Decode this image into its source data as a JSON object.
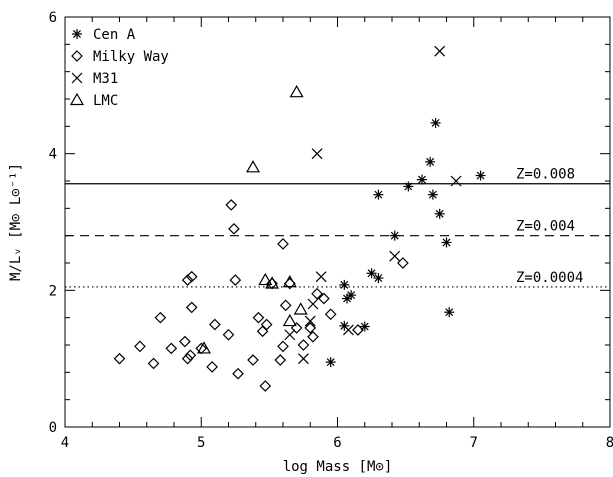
{
  "chart_data": {
    "type": "scatter",
    "xlabel": "log Mass [M⊙]",
    "ylabel": "M/Lᵥ [M⊙ L⊙⁻¹]",
    "xlim": [
      4,
      8
    ],
    "ylim": [
      0,
      6
    ],
    "x_ticks": [
      4,
      5,
      6,
      7,
      8
    ],
    "x_tick_labels": [
      "4",
      "5",
      "6",
      "7",
      "8"
    ],
    "y_ticks": [
      0,
      2,
      4,
      6
    ],
    "y_tick_labels": [
      "0",
      "2",
      "4",
      "6"
    ],
    "grid": false,
    "legend_position": "top-left",
    "series": [
      {
        "name": "Cen A",
        "marker": "asterisk",
        "points": [
          [
            5.95,
            0.95
          ],
          [
            6.05,
            1.48
          ],
          [
            6.05,
            2.08
          ],
          [
            6.07,
            1.88
          ],
          [
            6.1,
            1.93
          ],
          [
            6.2,
            1.47
          ],
          [
            6.25,
            2.25
          ],
          [
            6.3,
            2.18
          ],
          [
            6.3,
            3.4
          ],
          [
            6.42,
            2.8
          ],
          [
            6.52,
            3.52
          ],
          [
            6.62,
            3.62
          ],
          [
            6.68,
            3.88
          ],
          [
            6.7,
            3.4
          ],
          [
            6.72,
            4.45
          ],
          [
            6.75,
            3.12
          ],
          [
            6.8,
            2.7
          ],
          [
            6.82,
            1.68
          ],
          [
            7.05,
            3.68
          ]
        ]
      },
      {
        "name": "Milky Way",
        "marker": "diamond",
        "points": [
          [
            4.4,
            1.0
          ],
          [
            4.55,
            1.18
          ],
          [
            4.65,
            0.93
          ],
          [
            4.7,
            1.6
          ],
          [
            4.78,
            1.15
          ],
          [
            4.88,
            1.25
          ],
          [
            4.9,
            1.0
          ],
          [
            4.9,
            2.15
          ],
          [
            4.92,
            1.05
          ],
          [
            4.93,
            1.75
          ],
          [
            4.93,
            2.2
          ],
          [
            5.0,
            1.15
          ],
          [
            5.08,
            0.88
          ],
          [
            5.1,
            1.5
          ],
          [
            5.2,
            1.35
          ],
          [
            5.22,
            3.25
          ],
          [
            5.24,
            2.9
          ],
          [
            5.25,
            2.15
          ],
          [
            5.27,
            0.78
          ],
          [
            5.38,
            0.98
          ],
          [
            5.42,
            1.6
          ],
          [
            5.45,
            1.4
          ],
          [
            5.47,
            0.6
          ],
          [
            5.48,
            1.5
          ],
          [
            5.52,
            2.1
          ],
          [
            5.58,
            0.98
          ],
          [
            5.6,
            1.18
          ],
          [
            5.6,
            2.68
          ],
          [
            5.62,
            1.78
          ],
          [
            5.65,
            2.1
          ],
          [
            5.7,
            1.45
          ],
          [
            5.75,
            1.2
          ],
          [
            5.8,
            1.45
          ],
          [
            5.82,
            1.32
          ],
          [
            5.85,
            1.95
          ],
          [
            5.9,
            1.88
          ],
          [
            5.95,
            1.65
          ],
          [
            6.15,
            1.42
          ],
          [
            6.48,
            2.4
          ]
        ]
      },
      {
        "name": "M31",
        "marker": "cross",
        "points": [
          [
            5.65,
            1.35
          ],
          [
            5.75,
            1.0
          ],
          [
            5.8,
            1.55
          ],
          [
            5.82,
            1.8
          ],
          [
            5.88,
            2.2
          ],
          [
            5.85,
            4.0
          ],
          [
            6.08,
            1.42
          ],
          [
            6.42,
            2.5
          ],
          [
            6.75,
            5.5
          ],
          [
            6.87,
            3.6
          ]
        ]
      },
      {
        "name": "LMC",
        "marker": "triangle",
        "points": [
          [
            5.02,
            1.15
          ],
          [
            5.38,
            3.8
          ],
          [
            5.47,
            2.15
          ],
          [
            5.52,
            2.1
          ],
          [
            5.65,
            2.12
          ],
          [
            5.65,
            1.55
          ],
          [
            5.7,
            4.9
          ],
          [
            5.73,
            1.72
          ]
        ]
      }
    ],
    "reference_lines": [
      {
        "label": "Z=0.008",
        "y": 3.56,
        "style": "solid"
      },
      {
        "label": "Z=0.004",
        "y": 2.8,
        "style": "dashed"
      },
      {
        "label": "Z=0.0004",
        "y": 2.05,
        "style": "dotted"
      }
    ]
  }
}
